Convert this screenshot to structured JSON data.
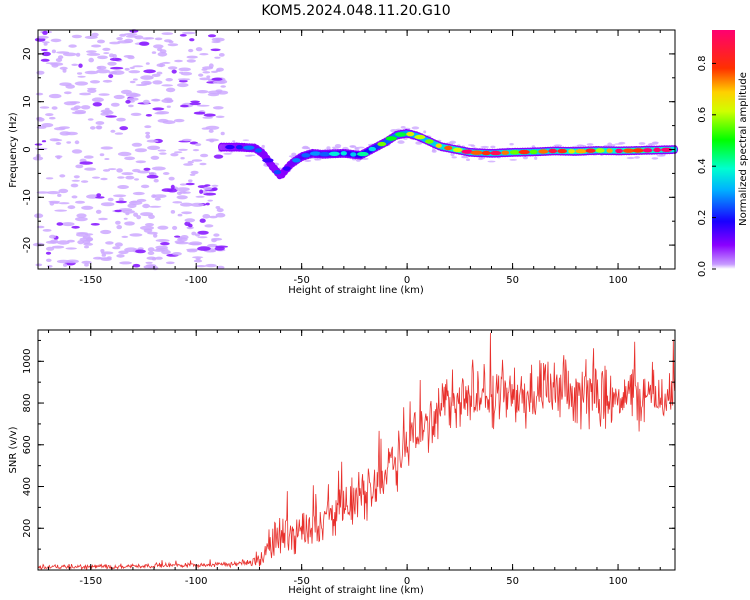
{
  "title": "KOM5.2024.048.11.20.G10",
  "chart_data": [
    {
      "type": "heatmap",
      "xlabel": "Height of straight line (km)",
      "ylabel": "Frequency (Hz)",
      "xlim": [
        -175,
        127
      ],
      "ylim": [
        -25,
        25
      ],
      "xticks": [
        -150,
        -100,
        -50,
        0,
        50,
        100
      ],
      "yticks": [
        -20,
        -10,
        0,
        10,
        20
      ],
      "colorbar": {
        "label": "Normalized spectral amplitude",
        "range": [
          0,
          0.93
        ],
        "ticks": [
          "0.0",
          "0.2",
          "0.4",
          "0.6",
          "0.8"
        ],
        "colormap": "rainbow (violet-blue-cyan-green-yellow-red-magenta)"
      },
      "ridge": {
        "description": "signal trace frequency vs height",
        "x": [
          -88,
          -80,
          -72,
          -68,
          -64,
          -60,
          -55,
          -50,
          -45,
          -40,
          -30,
          -22,
          -16,
          -10,
          -5,
          0,
          5,
          10,
          16,
          22,
          30,
          40,
          50,
          60,
          70,
          80,
          90,
          100,
          110,
          120,
          127
        ],
        "y": [
          0.5,
          0.5,
          0.3,
          -1.0,
          -3.5,
          -5.5,
          -3.0,
          -1.5,
          -0.8,
          -1.0,
          -0.8,
          -1.2,
          0.2,
          1.6,
          3.0,
          3.4,
          2.8,
          1.8,
          0.6,
          0.1,
          -0.6,
          -0.8,
          -0.6,
          -0.5,
          -0.3,
          -0.4,
          -0.2,
          -0.3,
          -0.2,
          -0.1,
          0.0
        ],
        "amplitude": [
          0.15,
          0.2,
          0.25,
          0.22,
          0.2,
          0.2,
          0.25,
          0.3,
          0.32,
          0.3,
          0.35,
          0.4,
          0.45,
          0.55,
          0.6,
          0.65,
          0.7,
          0.7,
          0.8,
          0.85,
          0.8,
          0.75,
          0.8,
          0.75,
          0.8,
          0.85,
          0.8,
          0.85,
          0.9,
          0.85,
          0.8
        ]
      }
    },
    {
      "type": "line",
      "xlabel": "Height of straight line (km)",
      "ylabel": "SNR (v/v)",
      "xlim": [
        -175,
        127
      ],
      "ylim": [
        0,
        1150
      ],
      "xticks": [
        -150,
        -100,
        -50,
        0,
        50,
        100
      ],
      "yticks": [
        200,
        400,
        600,
        800,
        1000
      ],
      "color": "#e8302c",
      "series": [
        {
          "x": [
            -175,
            -150,
            -125,
            -100,
            -85,
            -75,
            -70,
            -65,
            -60,
            -55,
            -50,
            -45,
            -40,
            -35,
            -30,
            -25,
            -20,
            -15,
            -10,
            -5,
            0,
            5,
            10,
            15,
            20,
            25,
            30,
            40,
            50,
            60,
            70,
            80,
            90,
            100,
            110,
            120,
            127
          ],
          "values": [
            15,
            15,
            20,
            25,
            25,
            35,
            50,
            110,
            180,
            170,
            200,
            220,
            240,
            260,
            290,
            330,
            360,
            420,
            480,
            540,
            600,
            640,
            720,
            760,
            800,
            820,
            820,
            840,
            830,
            840,
            850,
            830,
            840,
            840,
            830,
            840,
            820
          ],
          "noise_amplitude": [
            12,
            12,
            12,
            12,
            12,
            15,
            40,
            90,
            120,
            100,
            100,
            100,
            100,
            110,
            110,
            120,
            120,
            130,
            140,
            150,
            150,
            150,
            150,
            150,
            150,
            150,
            150,
            150,
            150,
            150,
            150,
            150,
            150,
            150,
            150,
            150,
            150
          ]
        }
      ]
    }
  ]
}
